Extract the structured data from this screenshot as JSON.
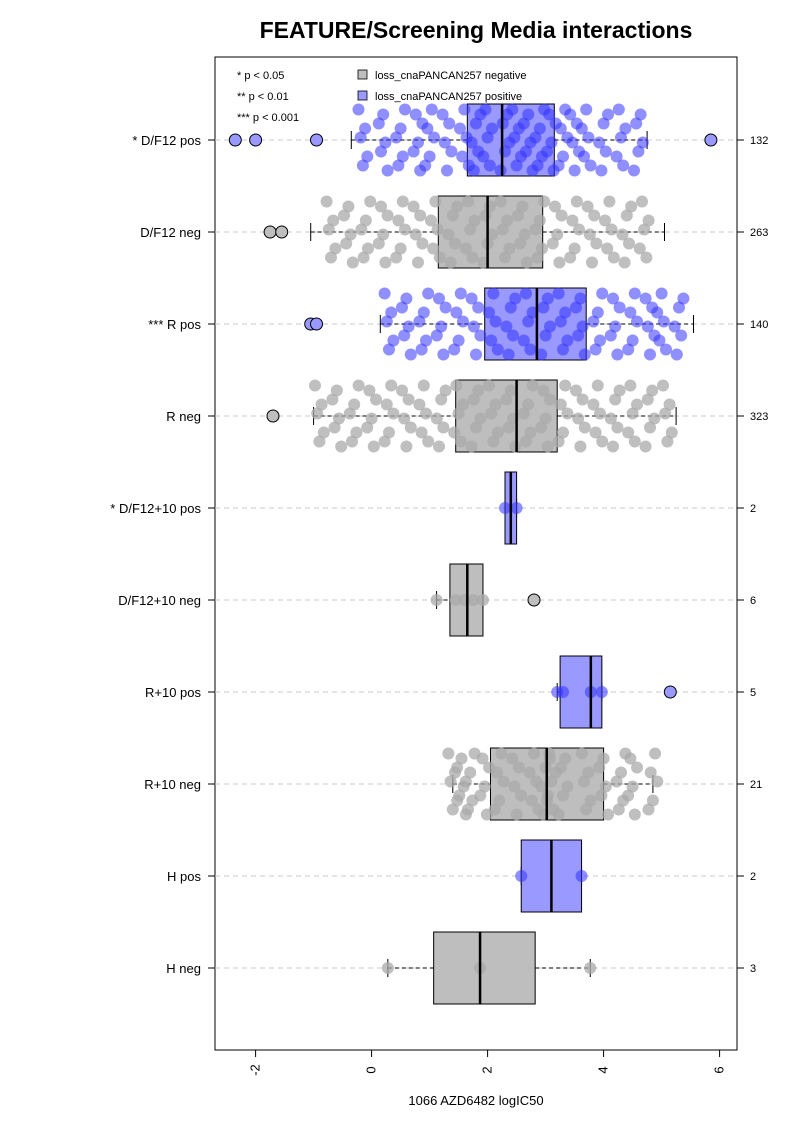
{
  "chart_data": {
    "type": "boxplot",
    "title": "FEATURE/Screening Media interactions",
    "xlabel": "1066 AZD6482 logIC50",
    "xlim": [
      -2.7,
      6.3
    ],
    "x_ticks": [
      -2,
      0,
      2,
      4,
      6
    ],
    "x_tick_labels": [
      "-2",
      "0",
      "2",
      "4",
      "6"
    ],
    "colors": {
      "negative": "#bebebe",
      "positive": "#9999ff",
      "neg_point": "#a9a9a9",
      "pos_point": "#3333ff"
    },
    "legend": {
      "placement": "top",
      "significance": [
        "* p < 0.05",
        "** p < 0.01",
        "*** p < 0.001"
      ],
      "entries": [
        {
          "label": "loss_cnaPANCAN257 negative",
          "color": "#bebebe"
        },
        {
          "label": "loss_cnaPANCAN257 positive",
          "color": "#9999ff"
        }
      ]
    },
    "groups": [
      {
        "label": "* D/F12 pos",
        "status": "positive",
        "n": "132",
        "whisker_low": -0.35,
        "q1": 1.65,
        "median": 2.25,
        "q3": 3.15,
        "whisker_high": 4.75,
        "points": [
          -0.15,
          0.2,
          0.5,
          0.8,
          1.0,
          1.3,
          1.6,
          1.8,
          2.0,
          2.3,
          2.5,
          2.7,
          2.9,
          3.1,
          3.3,
          3.5,
          3.7,
          4.0,
          4.3,
          4.6
        ],
        "outliers": [
          -2.35,
          -2.0,
          -0.95,
          5.85
        ]
      },
      {
        "label": "D/F12 neg",
        "status": "negative",
        "n": "263",
        "whisker_low": -1.05,
        "q1": 1.15,
        "median": 2.0,
        "q3": 2.95,
        "whisker_high": 5.05,
        "points": [
          -0.7,
          -0.4,
          -0.1,
          0.2,
          0.5,
          0.8,
          1.1,
          1.4,
          1.7,
          2.0,
          2.3,
          2.6,
          2.9,
          3.2,
          3.5,
          3.8,
          4.1,
          4.4,
          4.7
        ],
        "outliers": [
          -1.75,
          -1.55
        ]
      },
      {
        "label": "*** R pos",
        "status": "positive",
        "n": "140",
        "whisker_low": 0.15,
        "q1": 1.95,
        "median": 2.85,
        "q3": 3.7,
        "whisker_high": 5.55,
        "points": [
          0.3,
          0.6,
          0.9,
          1.2,
          1.5,
          1.8,
          2.1,
          2.4,
          2.7,
          3.0,
          3.3,
          3.6,
          3.9,
          4.2,
          4.5,
          4.8,
          5.0,
          5.3
        ],
        "outliers": [
          -1.05,
          -0.95
        ]
      },
      {
        "label": "R neg",
        "status": "negative",
        "n": "323",
        "whisker_low": -1.0,
        "q1": 1.45,
        "median": 2.5,
        "q3": 3.2,
        "whisker_high": 5.25,
        "points": [
          -0.9,
          -0.6,
          -0.3,
          0.0,
          0.3,
          0.6,
          0.9,
          1.2,
          1.5,
          1.8,
          2.1,
          2.4,
          2.7,
          3.0,
          3.3,
          3.6,
          3.9,
          4.2,
          4.5,
          4.8,
          5.1
        ],
        "outliers": [
          -1.7
        ]
      },
      {
        "label": "* D/F12+10 pos",
        "status": "positive",
        "n": "2",
        "whisker_low": 2.3,
        "q1": 2.3,
        "median": 2.4,
        "q3": 2.5,
        "whisker_high": 2.5,
        "points": [
          2.3,
          2.5
        ],
        "outliers": []
      },
      {
        "label": "D/F12+10 neg",
        "status": "negative",
        "n": "6",
        "whisker_low": 1.12,
        "q1": 1.35,
        "median": 1.65,
        "q3": 1.92,
        "whisker_high": 1.92,
        "points": [
          1.12,
          1.45,
          1.6,
          1.75,
          1.92
        ],
        "outliers": [
          2.8
        ]
      },
      {
        "label": "R+10 pos",
        "status": "positive",
        "n": "5",
        "whisker_low": 3.2,
        "q1": 3.25,
        "median": 3.78,
        "q3": 3.97,
        "whisker_high": 3.97,
        "points": [
          3.2,
          3.3,
          3.78,
          3.97
        ],
        "outliers": [
          5.15
        ]
      },
      {
        "label": "R+10 neg",
        "status": "negative",
        "n": "21",
        "whisker_low": 1.4,
        "q1": 2.05,
        "median": 3.02,
        "q3": 4.0,
        "whisker_high": 4.85,
        "points": [
          1.4,
          1.55,
          1.7,
          1.95,
          2.2,
          2.5,
          2.8,
          3.0,
          3.1,
          3.3,
          3.7,
          4.0,
          4.3,
          4.5,
          4.85
        ],
        "outliers": []
      },
      {
        "label": "H pos",
        "status": "positive",
        "n": "2",
        "whisker_low": 2.58,
        "q1": 2.58,
        "median": 3.1,
        "q3": 3.62,
        "whisker_high": 3.62,
        "points": [
          2.58,
          3.62
        ],
        "outliers": []
      },
      {
        "label": "H neg",
        "status": "negative",
        "n": "3",
        "whisker_low": 0.28,
        "q1": 1.07,
        "median": 1.87,
        "q3": 2.82,
        "whisker_high": 3.77,
        "points": [
          0.28,
          1.87,
          3.77
        ],
        "outliers": []
      }
    ]
  }
}
